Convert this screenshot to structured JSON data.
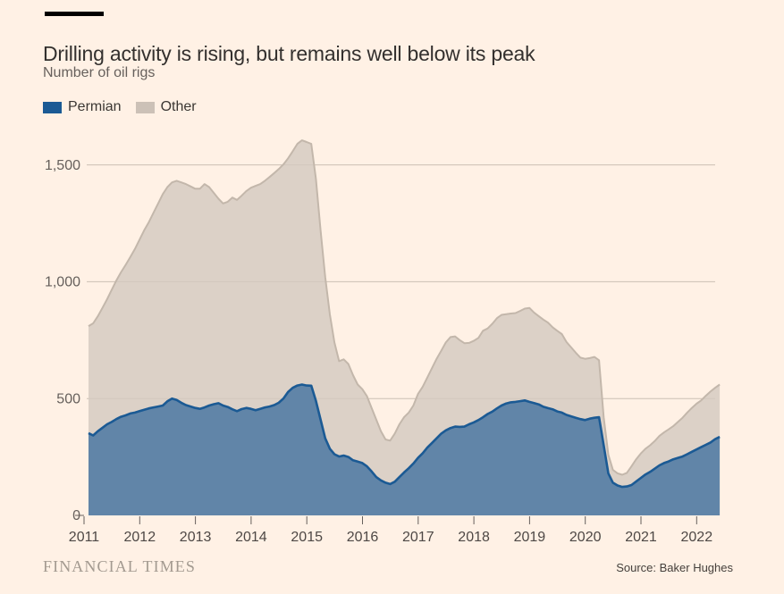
{
  "page": {
    "background": "#FFF1E5",
    "accent_bar_color": "#000000"
  },
  "header": {
    "title": "Drilling activity is rising, but remains well below its peak",
    "subtitle": "Number of oil rigs"
  },
  "legend": {
    "items": [
      {
        "label": "Permian",
        "color": "#1B5A94"
      },
      {
        "label": "Other",
        "color": "#CCC1B7"
      }
    ]
  },
  "footer": {
    "brand": "FINANCIAL TIMES",
    "source": "Source: Baker Hughes"
  },
  "chart_data": {
    "type": "area",
    "stacked": true,
    "title": "Drilling activity is rising, but remains well below its peak",
    "ylabel": "Number of oil rigs",
    "grid": "horizontal",
    "legend_position": "top-left",
    "x_start_year": 2011.08,
    "x_step_years": 0.0833333,
    "x_ticks": [
      "2011",
      "2012",
      "2013",
      "2014",
      "2015",
      "2016",
      "2017",
      "2018",
      "2019",
      "2020",
      "2021",
      "2022"
    ],
    "y_ticks": [
      0,
      500,
      1000,
      1500
    ],
    "y_tick_labels": [
      "0",
      "500",
      "1,000",
      "1,500"
    ],
    "ylim": [
      0,
      1632
    ],
    "series": [
      {
        "name": "Permian",
        "fill": "#6185A8",
        "line": "#1B5A94",
        "values": [
          352,
          342,
          360,
          375,
          390,
          400,
          412,
          422,
          428,
          436,
          440,
          446,
          452,
          458,
          462,
          466,
          470,
          488,
          500,
          494,
          482,
          472,
          466,
          460,
          456,
          462,
          470,
          476,
          480,
          470,
          464,
          454,
          446,
          455,
          460,
          456,
          450,
          456,
          462,
          466,
          472,
          482,
          500,
          528,
          546,
          556,
          560,
          556,
          555,
          490,
          410,
          330,
          285,
          262,
          252,
          256,
          250,
          236,
          230,
          224,
          210,
          188,
          164,
          150,
          140,
          134,
          144,
          164,
          184,
          202,
          222,
          246,
          266,
          290,
          310,
          330,
          350,
          364,
          374,
          380,
          379,
          380,
          390,
          398,
          408,
          420,
          434,
          444,
          458,
          470,
          479,
          484,
          486,
          489,
          492,
          486,
          481,
          475,
          465,
          459,
          454,
          445,
          440,
          430,
          424,
          418,
          412,
          408,
          414,
          418,
          420,
          300,
          180,
          140,
          128,
          122,
          124,
          130,
          145,
          160,
          175,
          186,
          200,
          214,
          224,
          231,
          240,
          246,
          252,
          262,
          272,
          282,
          292,
          302,
          312,
          326,
          336
        ]
      },
      {
        "name": "Other",
        "fill": "#D3C9BF",
        "line": "#C3B7AB",
        "values": [
          458,
          480,
          492,
          513,
          535,
          565,
          593,
          618,
          644,
          669,
          700,
          734,
          768,
          797,
          833,
          869,
          905,
          917,
          925,
          938,
          943,
          946,
          942,
          938,
          942,
          956,
          935,
          904,
          875,
          865,
          878,
          906,
          904,
          913,
          928,
          946,
          960,
          962,
          970,
          982,
          993,
          1000,
          1002,
          1000,
          1012,
          1034,
          1045,
          1042,
          1035,
          950,
          810,
          690,
          575,
          478,
          408,
          412,
          398,
          364,
          330,
          316,
          300,
          272,
          246,
          210,
          185,
          186,
          206,
          226,
          236,
          238,
          248,
          274,
          284,
          300,
          320,
          340,
          355,
          376,
          389,
          386,
          371,
          357,
          348,
          349,
          351,
          370,
          366,
          376,
          386,
          388,
          382,
          380,
          380,
          386,
          393,
          402,
          387,
          378,
          373,
          366,
          351,
          345,
          336,
          312,
          295,
          278,
          263,
          262,
          259,
          260,
          244,
          120,
          80,
          55,
          52,
          52,
          58,
          80,
          95,
          105,
          110,
          114,
          118,
          126,
          131,
          137,
          142,
          154,
          166,
          178,
          188,
          196,
          200,
          210,
          218,
          220,
          224
        ]
      }
    ]
  }
}
